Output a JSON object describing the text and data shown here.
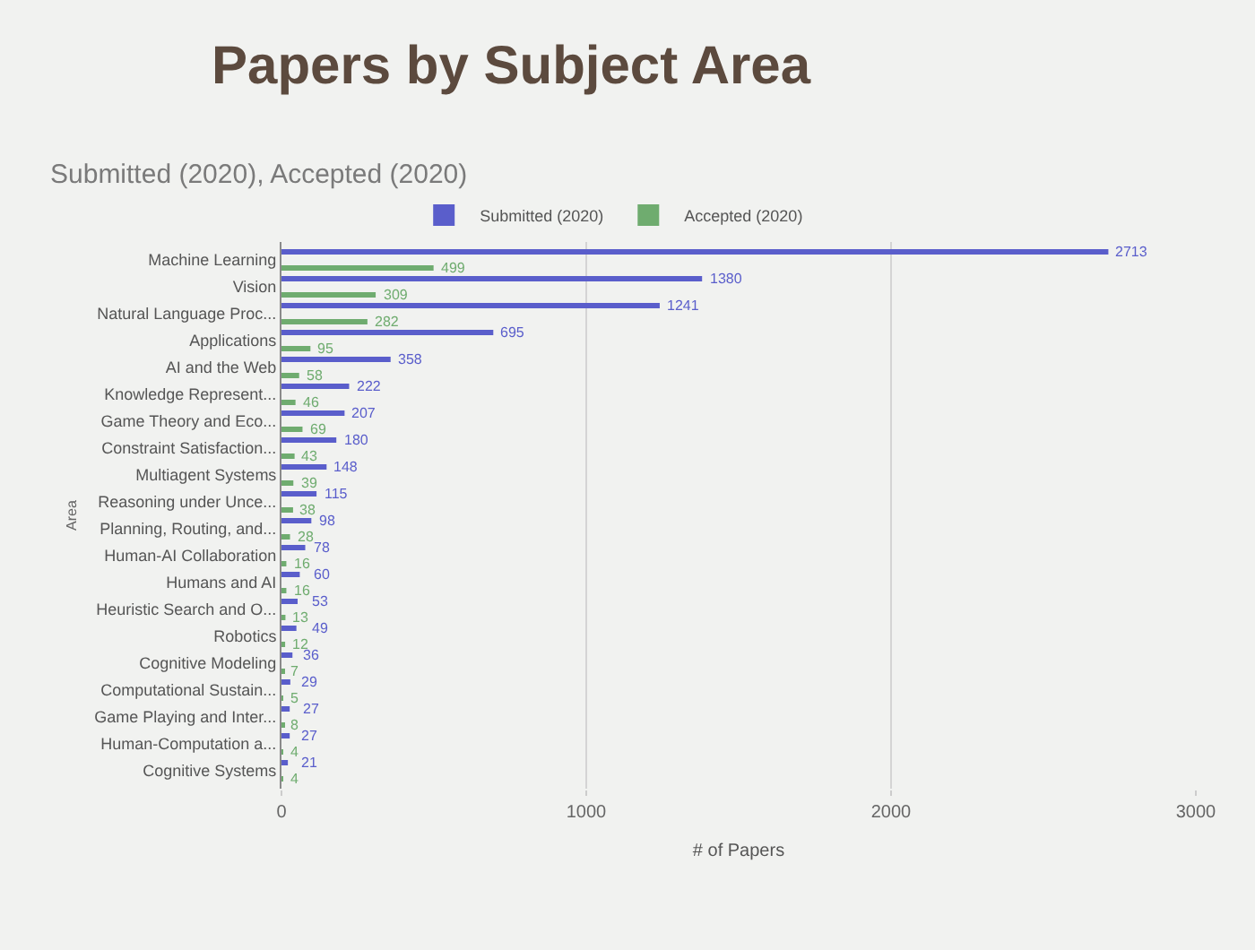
{
  "chart_data": {
    "type": "bar",
    "orientation": "horizontal",
    "title": "Papers by Subject Area",
    "subtitle": "Submitted (2020), Accepted (2020)",
    "xlabel": "# of Papers",
    "ylabel": "Area",
    "categories": [
      "Machine Learning",
      "Vision",
      "Natural Language Proc...",
      "Applications",
      "AI and the Web",
      "Knowledge Represent...",
      "Game Theory and Eco...",
      "Constraint Satisfaction...",
      "Multiagent Systems",
      "Reasoning under Unce...",
      "Planning, Routing, and...",
      "Human-AI Collaboration",
      "Humans and AI",
      "Heuristic Search and O...",
      "Robotics",
      "Cognitive Modeling",
      "Computational Sustain...",
      "Game Playing and Inter...",
      "Human-Computation a...",
      "Cognitive Systems"
    ],
    "series": [
      {
        "name": "Submitted (2020)",
        "color": "#5a5ecb",
        "values": [
          2713,
          1380,
          1241,
          695,
          358,
          222,
          207,
          180,
          148,
          115,
          98,
          78,
          60,
          53,
          49,
          36,
          29,
          27,
          27,
          21
        ]
      },
      {
        "name": "Accepted (2020)",
        "color": "#6fac6f",
        "values": [
          499,
          309,
          282,
          95,
          58,
          46,
          69,
          43,
          39,
          38,
          28,
          16,
          16,
          13,
          12,
          7,
          5,
          8,
          4,
          4
        ]
      }
    ],
    "xlim": [
      0,
      3000
    ],
    "xticks": [
      0,
      1000,
      2000,
      3000
    ],
    "grid": "x",
    "legend": "top",
    "data_labels": true
  }
}
